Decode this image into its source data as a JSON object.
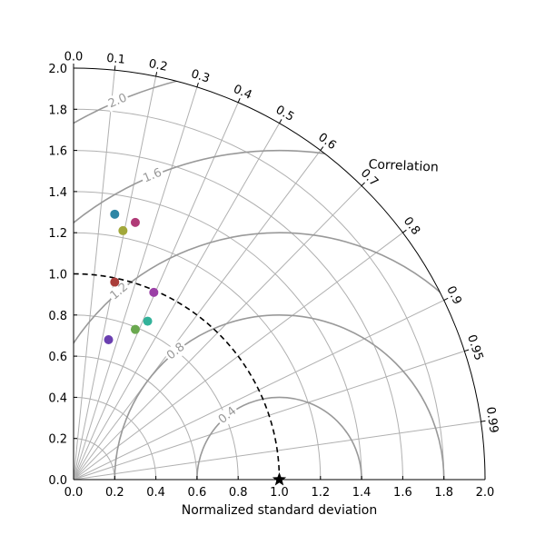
{
  "chart_data": {
    "type": "scatter",
    "subtype": "taylor-diagram",
    "title": "",
    "xlabel": "Normalized standard deviation",
    "arc_label": "Correlation",
    "xlim": [
      0,
      2.0
    ],
    "ylim": [
      0,
      2.0
    ],
    "x_ticks": [
      "0.0",
      "0.2",
      "0.4",
      "0.6",
      "0.8",
      "1.0",
      "1.2",
      "1.4",
      "1.6",
      "1.8",
      "2.0"
    ],
    "y_ticks": [
      "0.0",
      "0.2",
      "0.4",
      "0.6",
      "0.8",
      "1.0",
      "1.2",
      "1.4",
      "1.6",
      "1.8",
      "2.0"
    ],
    "correlation_ticks": [
      {
        "label": "0.0",
        "value": 0.0
      },
      {
        "label": "0.1",
        "value": 0.1
      },
      {
        "label": "0.2",
        "value": 0.2
      },
      {
        "label": "0.3",
        "value": 0.3
      },
      {
        "label": "0.4",
        "value": 0.4
      },
      {
        "label": "0.5",
        "value": 0.5
      },
      {
        "label": "0.6",
        "value": 0.6
      },
      {
        "label": "0.7",
        "value": 0.7
      },
      {
        "label": "0.8",
        "value": 0.8
      },
      {
        "label": "0.9",
        "value": 0.9
      },
      {
        "label": "0.95",
        "value": 0.95
      },
      {
        "label": "0.99",
        "value": 0.99
      }
    ],
    "std_grid": [
      0.2,
      0.4,
      0.6,
      0.8,
      1.2,
      1.4,
      1.6,
      1.8
    ],
    "rms_contours": [
      {
        "value": 0.4,
        "label": "0.4"
      },
      {
        "value": 0.8,
        "label": "0.8"
      },
      {
        "value": 1.2,
        "label": "1.2"
      },
      {
        "value": 1.6,
        "label": "1.6"
      },
      {
        "value": 2.0,
        "label": "2.0"
      }
    ],
    "reference": {
      "std": 1.0,
      "correlation": 1.0,
      "marker": "star"
    },
    "points": [
      {
        "x": 0.2,
        "y": 1.29,
        "color": "#2e86a5"
      },
      {
        "x": 0.3,
        "y": 1.25,
        "color": "#b03a77"
      },
      {
        "x": 0.24,
        "y": 1.21,
        "color": "#a2a83a"
      },
      {
        "x": 0.2,
        "y": 0.96,
        "color": "#a93d3a"
      },
      {
        "x": 0.39,
        "y": 0.91,
        "color": "#9b3fa6"
      },
      {
        "x": 0.36,
        "y": 0.77,
        "color": "#33b29a"
      },
      {
        "x": 0.3,
        "y": 0.73,
        "color": "#6aa84f"
      },
      {
        "x": 0.17,
        "y": 0.68,
        "color": "#6a3fb0"
      }
    ],
    "colors": {
      "grid": "#b0b0b0",
      "rms": "#999999",
      "reference_arc": "#000000",
      "frame": "#000000"
    }
  }
}
